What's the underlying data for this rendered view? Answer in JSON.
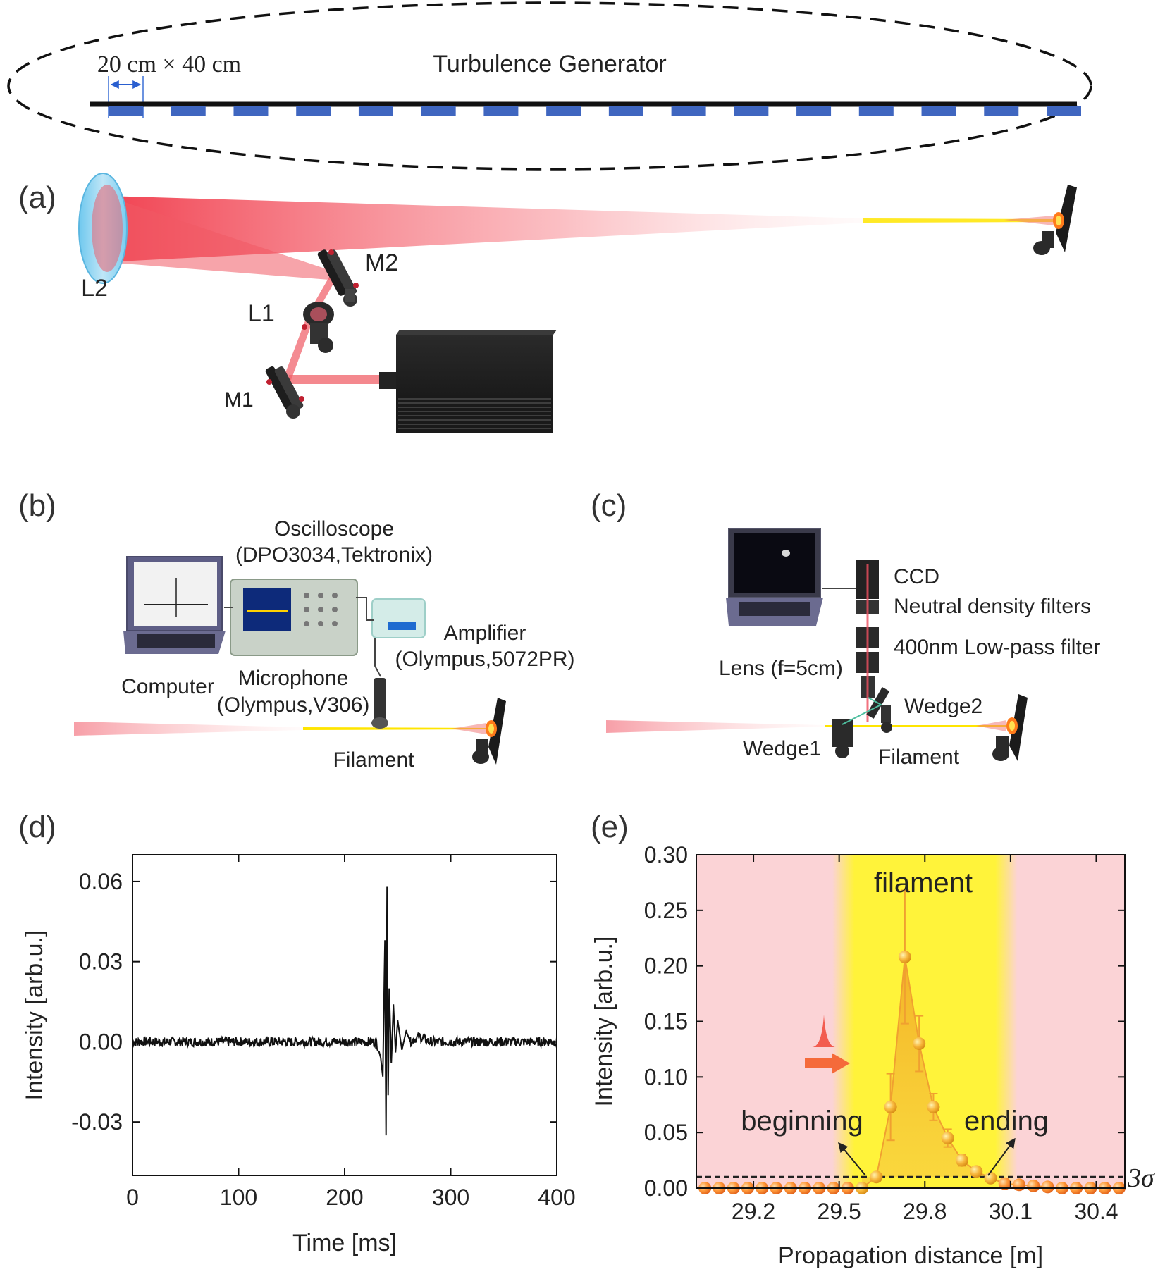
{
  "panels": {
    "a": "(a)",
    "b": "(b)",
    "c": "(c)",
    "d": "(d)",
    "e": "(e)"
  },
  "turbulence": {
    "title": "Turbulence Generator",
    "size_label": "20 cm × 40 cm",
    "segment_count": 16
  },
  "setup_a": {
    "L2": "L2",
    "M2": "M2",
    "L1": "L1",
    "M1": "M1"
  },
  "setup_b": {
    "oscilloscope": "Oscilloscope",
    "oscilloscope_model": "(DPO3034,Tektronix)",
    "amplifier": "Amplifier",
    "amplifier_model": "(Olympus,5072PR)",
    "computer": "Computer",
    "microphone": "Microphone",
    "microphone_model": "(Olympus,V306)",
    "filament": "Filament"
  },
  "setup_c": {
    "ccd": "CCD",
    "nd_filters": "Neutral density filters",
    "lowpass": "400nm Low-pass filter",
    "lens": "Lens (f=5cm)",
    "wedge2": "Wedge2",
    "wedge1": "Wedge1",
    "filament": "Filament"
  },
  "colors": {
    "beam": "#f0505a",
    "filament": "#ffe500",
    "turbulence_block": "#3f66c0",
    "pink_bg": "#fbd3d6",
    "yellow_bg": "#fff33a",
    "marker": "#ff8a2a"
  },
  "chart_data": [
    {
      "type": "line",
      "ylabel": "Intensity [arb.u.]",
      "xlabel": "Time [ms]",
      "xlim": [
        0,
        400
      ],
      "ylim": [
        -0.05,
        0.07
      ],
      "xticks": [
        "0",
        "100",
        "200",
        "300",
        "400"
      ],
      "yticks": [
        "0.06",
        "0.03",
        "0.00",
        "-0.03"
      ],
      "ytick_values": [
        0.06,
        0.03,
        0.0,
        -0.03
      ],
      "series": [
        {
          "x": [
            0,
            50,
            100,
            150,
            200,
            230,
            234,
            236,
            238,
            239,
            240,
            241,
            242,
            244,
            246,
            248,
            250,
            254,
            258,
            262,
            270,
            280,
            300,
            350,
            400
          ],
          "y": [
            0.0,
            0.0,
            0.0,
            0.0,
            0.0,
            0.0,
            -0.006,
            -0.013,
            0.038,
            -0.035,
            0.058,
            -0.02,
            0.02,
            -0.008,
            0.014,
            -0.004,
            0.008,
            -0.003,
            0.004,
            0.0,
            0.002,
            0.0,
            0.0,
            0.0,
            0.0
          ]
        }
      ]
    },
    {
      "type": "scatter",
      "ylabel": "Intensity [arb.u.]",
      "xlabel": "Propagation distance [m]",
      "xlim": [
        29.0,
        30.5
      ],
      "ylim": [
        0.0,
        0.3
      ],
      "xticks": [
        "29.2",
        "29.5",
        "29.8",
        "30.1",
        "30.4"
      ],
      "xtick_values": [
        29.2,
        29.5,
        29.8,
        30.1,
        30.4
      ],
      "yticks": [
        "0.00",
        "0.05",
        "0.10",
        "0.15",
        "0.20",
        "0.25",
        "0.30"
      ],
      "ytick_values": [
        0.0,
        0.05,
        0.1,
        0.15,
        0.2,
        0.25,
        0.3
      ],
      "filament_region": [
        29.55,
        30.05
      ],
      "threshold": 0.01,
      "threshold_label": "3σ",
      "annotations": {
        "region": "filament",
        "beginning": "beginning",
        "ending": "ending"
      },
      "series": [
        {
          "x": [
            29.03,
            29.08,
            29.13,
            29.18,
            29.23,
            29.28,
            29.33,
            29.38,
            29.43,
            29.48,
            29.53,
            29.58,
            29.63,
            29.68,
            29.73,
            29.78,
            29.83,
            29.88,
            29.93,
            29.98,
            30.03,
            30.08,
            30.13,
            30.18,
            30.23,
            30.28,
            30.33,
            30.38,
            30.43,
            30.48
          ],
          "y": [
            0.0,
            0.0,
            0.0,
            0.0,
            0.0,
            0.0,
            0.0,
            0.0,
            0.0,
            0.0,
            0.0,
            0.0,
            0.01,
            0.073,
            0.208,
            0.13,
            0.073,
            0.045,
            0.025,
            0.015,
            0.009,
            0.004,
            0.003,
            0.002,
            0.001,
            0.0,
            0.0,
            0.0,
            0.0,
            0.0
          ],
          "err": [
            0,
            0,
            0,
            0,
            0,
            0,
            0,
            0,
            0,
            0,
            0,
            0,
            0,
            0.03,
            0.06,
            0.025,
            0.012,
            0.008,
            0.005,
            0.004,
            0.003,
            0,
            0,
            0,
            0,
            0,
            0,
            0,
            0,
            0
          ]
        }
      ]
    }
  ]
}
